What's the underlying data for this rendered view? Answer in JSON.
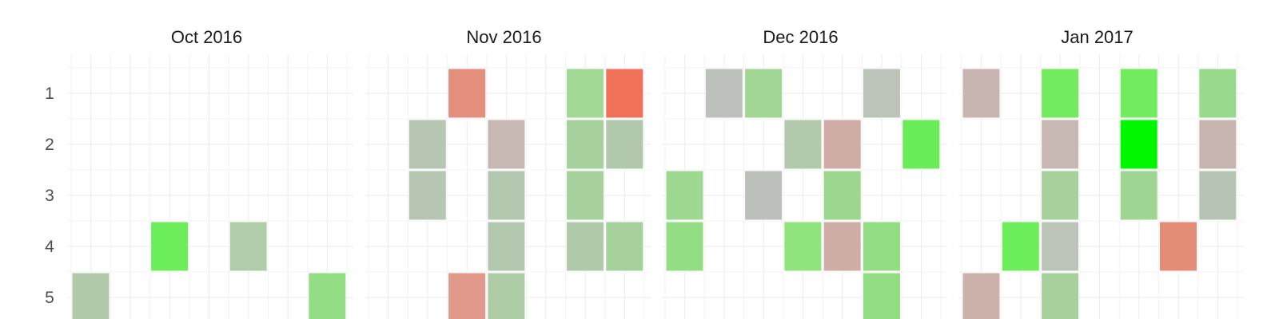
{
  "chart_data": {
    "type": "heatmap",
    "title": "",
    "row_labels": [
      "1",
      "2",
      "3",
      "4",
      "5"
    ],
    "columns_per_facet": 7,
    "value_scale": "color (red = low, grey = neutral, green = high)",
    "facets": [
      {
        "label": "Oct 2016",
        "cells": [
          {
            "row": 4,
            "col": 3,
            "color": "#6ced5a"
          },
          {
            "row": 4,
            "col": 5,
            "color": "#b0cca8"
          },
          {
            "row": 5,
            "col": 1,
            "color": "#b0c9a8"
          },
          {
            "row": 5,
            "col": 7,
            "color": "#93de84"
          }
        ]
      },
      {
        "label": "Nov 2016",
        "cells": [
          {
            "row": 1,
            "col": 3,
            "color": "#e48f7c"
          },
          {
            "row": 1,
            "col": 6,
            "color": "#a0d894"
          },
          {
            "row": 1,
            "col": 7,
            "color": "#f07058"
          },
          {
            "row": 2,
            "col": 2,
            "color": "#b6c6b2"
          },
          {
            "row": 2,
            "col": 4,
            "color": "#c8b8b4"
          },
          {
            "row": 2,
            "col": 6,
            "color": "#a6d09c"
          },
          {
            "row": 2,
            "col": 7,
            "color": "#b2c8ad"
          },
          {
            "row": 3,
            "col": 2,
            "color": "#b6c6b2"
          },
          {
            "row": 3,
            "col": 4,
            "color": "#b3c8ae"
          },
          {
            "row": 3,
            "col": 6,
            "color": "#a6d09c"
          },
          {
            "row": 4,
            "col": 4,
            "color": "#b3c8ae"
          },
          {
            "row": 4,
            "col": 6,
            "color": "#b0c9a9"
          },
          {
            "row": 4,
            "col": 7,
            "color": "#a6d09c"
          },
          {
            "row": 5,
            "col": 3,
            "color": "#e0998a"
          },
          {
            "row": 5,
            "col": 4,
            "color": "#aecda7"
          }
        ]
      },
      {
        "label": "Dec 2016",
        "cells": [
          {
            "row": 1,
            "col": 2,
            "color": "#bcc1bb"
          },
          {
            "row": 1,
            "col": 3,
            "color": "#a1d695"
          },
          {
            "row": 1,
            "col": 6,
            "color": "#bcc3b8"
          },
          {
            "row": 2,
            "col": 4,
            "color": "#b2c9ac"
          },
          {
            "row": 2,
            "col": 5,
            "color": "#d0aca6"
          },
          {
            "row": 2,
            "col": 7,
            "color": "#6aec58"
          },
          {
            "row": 3,
            "col": 1,
            "color": "#9cd890"
          },
          {
            "row": 3,
            "col": 3,
            "color": "#bbc0ba"
          },
          {
            "row": 3,
            "col": 5,
            "color": "#9cd78f"
          },
          {
            "row": 4,
            "col": 1,
            "color": "#93de84"
          },
          {
            "row": 4,
            "col": 4,
            "color": "#8fe47e"
          },
          {
            "row": 4,
            "col": 5,
            "color": "#cfada7"
          },
          {
            "row": 4,
            "col": 6,
            "color": "#93de84"
          },
          {
            "row": 5,
            "col": 6,
            "color": "#93de84"
          }
        ]
      },
      {
        "label": "Jan 2017",
        "cells": [
          {
            "row": 1,
            "col": 1,
            "color": "#c8b5b2"
          },
          {
            "row": 1,
            "col": 3,
            "color": "#72ec5e"
          },
          {
            "row": 1,
            "col": 5,
            "color": "#72ec5e"
          },
          {
            "row": 1,
            "col": 7,
            "color": "#98d98b"
          },
          {
            "row": 2,
            "col": 3,
            "color": "#c8b8b4"
          },
          {
            "row": 2,
            "col": 5,
            "color": "#00f700"
          },
          {
            "row": 2,
            "col": 7,
            "color": "#c9b5b0"
          },
          {
            "row": 3,
            "col": 3,
            "color": "#a6d09c"
          },
          {
            "row": 3,
            "col": 5,
            "color": "#9fd593"
          },
          {
            "row": 3,
            "col": 7,
            "color": "#b6c4b3"
          },
          {
            "row": 4,
            "col": 2,
            "color": "#6ced5a"
          },
          {
            "row": 4,
            "col": 3,
            "color": "#bcc3b8"
          },
          {
            "row": 4,
            "col": 6,
            "color": "#e58c77"
          },
          {
            "row": 5,
            "col": 1,
            "color": "#cdb2ac"
          },
          {
            "row": 5,
            "col": 3,
            "color": "#a6d09c"
          }
        ]
      }
    ]
  }
}
